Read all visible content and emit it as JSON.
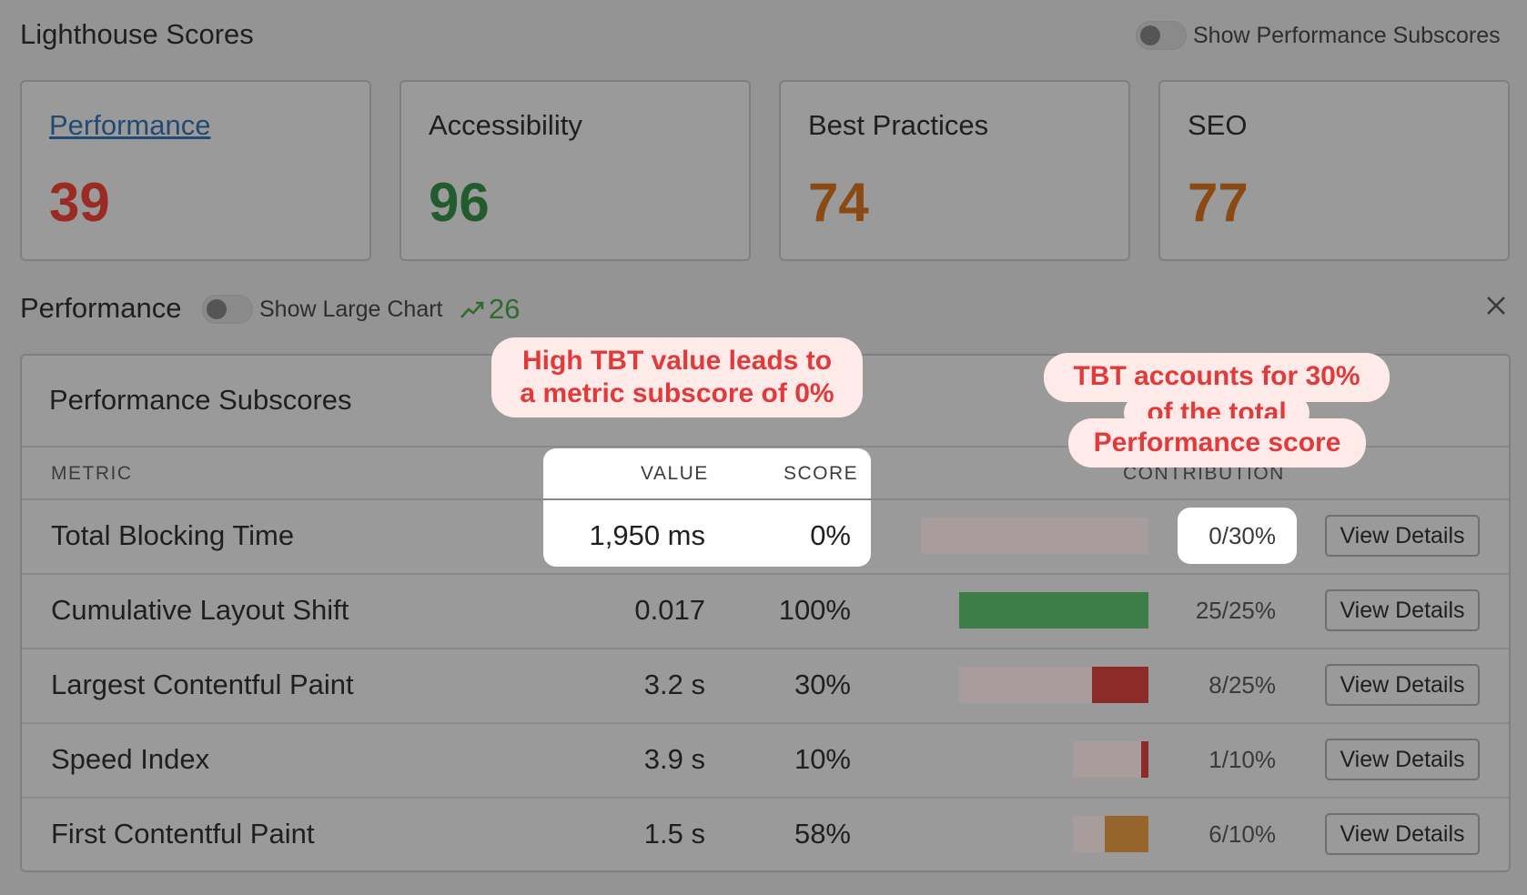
{
  "header": {
    "title": "Lighthouse Scores",
    "subscores_toggle_label": "Show Performance Subscores"
  },
  "cards": [
    {
      "title": "Performance",
      "score": "39",
      "color": "#9a2a22",
      "link": true
    },
    {
      "title": "Accessibility",
      "score": "96",
      "color": "#235c2c",
      "link": false
    },
    {
      "title": "Best Practices",
      "score": "74",
      "color": "#8a4a14",
      "link": false
    },
    {
      "title": "SEO",
      "score": "77",
      "color": "#8a4a14",
      "link": false
    }
  ],
  "performance": {
    "title": "Performance",
    "large_chart_toggle_label": "Show Large Chart",
    "trend_value": "26",
    "trend_color": "#2f6b2f",
    "close_icon": "close-icon"
  },
  "subscores": {
    "title": "Performance Subscores",
    "columns": {
      "metric": "METRIC",
      "value": "VALUE",
      "score": "SCORE",
      "contribution": "CONTRIBUTION"
    },
    "view_label": "View Details",
    "rows": [
      {
        "metric": "Total Blocking Time",
        "value": "1,950 ms",
        "score": "0%",
        "contribution": "0/30%",
        "score_fraction": 0.0,
        "weight": 30,
        "fill_color": "#a99c9c"
      },
      {
        "metric": "Cumulative Layout Shift",
        "value": "0.017",
        "score": "100%",
        "contribution": "25/25%",
        "score_fraction": 1.0,
        "weight": 25,
        "fill_color": "#3e7d46"
      },
      {
        "metric": "Largest Contentful Paint",
        "value": "3.2 s",
        "score": "30%",
        "contribution": "8/25%",
        "score_fraction": 0.3,
        "weight": 25,
        "fill_color": "#8c2b27"
      },
      {
        "metric": "Speed Index",
        "value": "3.9 s",
        "score": "10%",
        "contribution": "1/10%",
        "score_fraction": 0.1,
        "weight": 10,
        "fill_color": "#8c2b27"
      },
      {
        "metric": "First Contentful Paint",
        "value": "1.5 s",
        "score": "58%",
        "contribution": "6/10%",
        "score_fraction": 0.58,
        "weight": 10,
        "fill_color": "#95652b"
      }
    ]
  },
  "callouts": {
    "left": [
      "High TBT value leads to",
      "a metric subscore of 0%"
    ],
    "right": [
      "TBT accounts for 30%",
      "of the total",
      "Performance score"
    ]
  }
}
